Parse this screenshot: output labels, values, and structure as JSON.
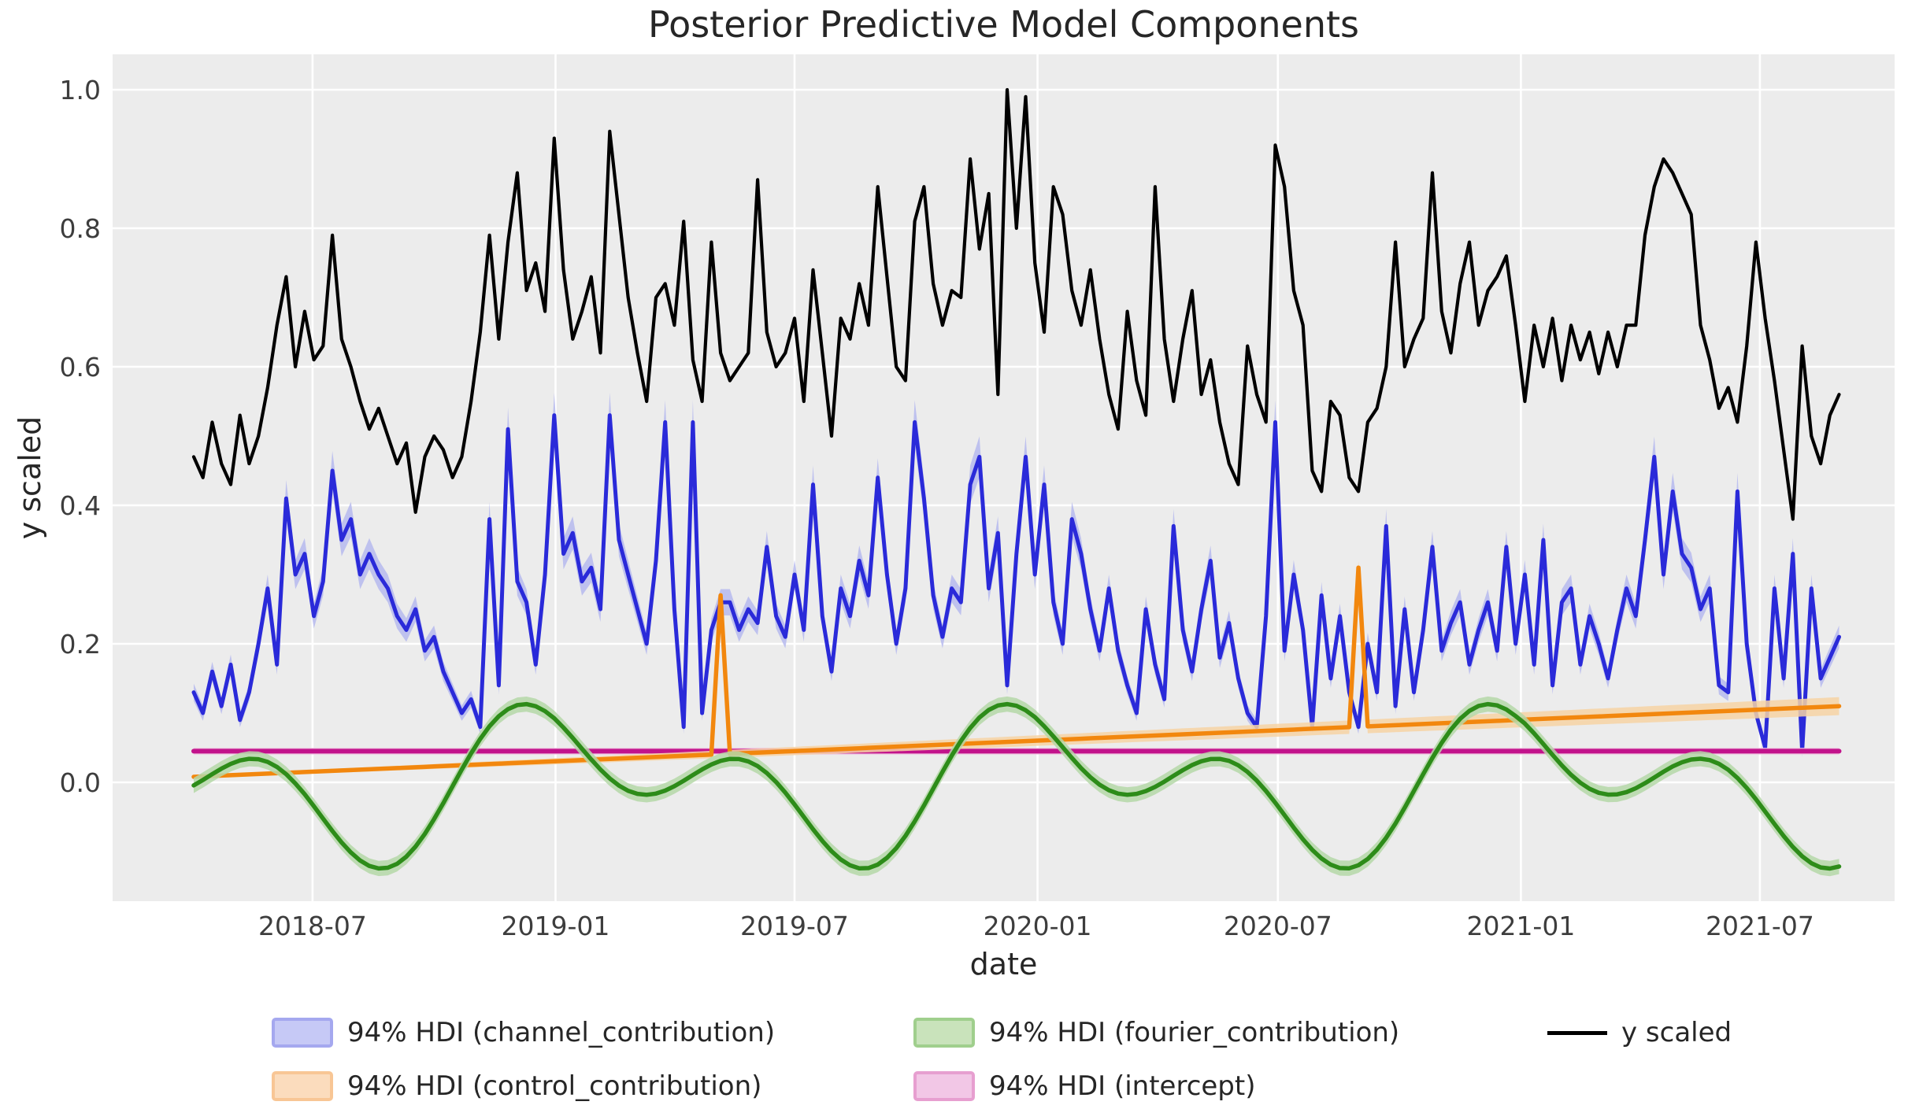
{
  "chart_data": {
    "type": "line",
    "title": "Posterior Predictive Model Components",
    "xlabel": "date",
    "ylabel": "y scaled",
    "hdi_label_prefix": "94% HDI",
    "x_start_date": "2018-04-02",
    "x_freq_days": 7,
    "n_points": 179,
    "ylim": [
      -0.172,
      1.055
    ],
    "grid": true,
    "plot_background": "#ececec",
    "grid_color": "#ffffff",
    "tick_color": "#3d3d3d",
    "text_color": "#262626",
    "x_ticks": [
      {
        "label": "2018-07",
        "day": 90
      },
      {
        "label": "2019-01",
        "day": 274
      },
      {
        "label": "2019-07",
        "day": 455
      },
      {
        "label": "2020-01",
        "day": 639
      },
      {
        "label": "2020-07",
        "day": 821
      },
      {
        "label": "2021-01",
        "day": 1005
      },
      {
        "label": "2021-07",
        "day": 1186
      }
    ],
    "y_ticks": [
      {
        "label": "1.0",
        "value": 1.0
      },
      {
        "label": "0.8",
        "value": 0.8
      },
      {
        "label": "0.6",
        "value": 0.6
      },
      {
        "label": "0.4",
        "value": 0.4
      },
      {
        "label": "0.2",
        "value": 0.2
      },
      {
        "label": "0.0",
        "value": 0.0
      }
    ],
    "series": [
      {
        "id": "channel_contribution",
        "legend_label": "94% HDI (channel_contribution)",
        "kind": "line_hdi",
        "color": "#2a2ad9",
        "band_color": "#b6baee",
        "band_base": 0.006,
        "band_scale": 0.05,
        "values": [
          0.13,
          0.1,
          0.16,
          0.11,
          0.17,
          0.09,
          0.13,
          0.2,
          0.28,
          0.17,
          0.41,
          0.3,
          0.33,
          0.24,
          0.29,
          0.45,
          0.35,
          0.38,
          0.3,
          0.33,
          0.3,
          0.28,
          0.24,
          0.22,
          0.25,
          0.19,
          0.21,
          0.16,
          0.13,
          0.1,
          0.12,
          0.08,
          0.38,
          0.14,
          0.51,
          0.29,
          0.26,
          0.17,
          0.3,
          0.53,
          0.33,
          0.36,
          0.29,
          0.31,
          0.25,
          0.53,
          0.35,
          0.3,
          0.25,
          0.2,
          0.32,
          0.52,
          0.25,
          0.08,
          0.52,
          0.1,
          0.22,
          0.26,
          0.26,
          0.22,
          0.25,
          0.23,
          0.34,
          0.24,
          0.21,
          0.3,
          0.22,
          0.43,
          0.24,
          0.16,
          0.28,
          0.24,
          0.32,
          0.27,
          0.44,
          0.3,
          0.2,
          0.28,
          0.52,
          0.41,
          0.27,
          0.21,
          0.28,
          0.26,
          0.43,
          0.47,
          0.28,
          0.36,
          0.14,
          0.33,
          0.47,
          0.3,
          0.43,
          0.26,
          0.2,
          0.38,
          0.33,
          0.25,
          0.19,
          0.28,
          0.19,
          0.14,
          0.1,
          0.25,
          0.17,
          0.12,
          0.37,
          0.22,
          0.16,
          0.25,
          0.32,
          0.18,
          0.23,
          0.15,
          0.1,
          0.08,
          0.24,
          0.52,
          0.19,
          0.3,
          0.22,
          0.08,
          0.27,
          0.15,
          0.24,
          0.13,
          0.08,
          0.2,
          0.13,
          0.37,
          0.11,
          0.25,
          0.13,
          0.22,
          0.34,
          0.19,
          0.23,
          0.26,
          0.17,
          0.22,
          0.26,
          0.19,
          0.34,
          0.2,
          0.3,
          0.17,
          0.35,
          0.14,
          0.26,
          0.28,
          0.17,
          0.24,
          0.2,
          0.15,
          0.22,
          0.28,
          0.24,
          0.35,
          0.47,
          0.3,
          0.42,
          0.33,
          0.31,
          0.25,
          0.28,
          0.14,
          0.13,
          0.42,
          0.2,
          0.1,
          0.05,
          0.28,
          0.15,
          0.33,
          0.045,
          0.28,
          0.15,
          0.18,
          0.21
        ]
      },
      {
        "id": "intercept",
        "legend_label": "94% HDI (intercept)",
        "kind": "constant",
        "color": "#c2138b",
        "band_color": "#eec2e0",
        "mean": 0.045,
        "band_halfwidth": 0.005
      },
      {
        "id": "control_contribution",
        "legend_label": "94% HDI (control_contribution)",
        "kind": "baseline_spikes",
        "color": "#f2870e",
        "band_color": "#f7d3a5",
        "baseline_start": 0.008,
        "baseline_end": 0.11,
        "band_start": 0.002,
        "band_end": 0.013,
        "spikes": [
          {
            "week": 57,
            "date": "2019-05-06",
            "value": 0.27
          },
          {
            "week": 126,
            "date": "2020-08-31",
            "value": 0.31
          }
        ]
      },
      {
        "id": "fourier_contribution",
        "legend_label": "94% HDI (fourier_contribution)",
        "kind": "fourier",
        "color": "#2d8c19",
        "band_color": "#b5d8a8",
        "band_halfwidth": 0.011,
        "harmonics": {
          "period_days": 365.25,
          "cos1": 0.0628,
          "sin1": 0.0241,
          "cos2": 0.0293,
          "sin2": -0.0615
        },
        "annual_peak": {
          "around": "12-20",
          "value": 0.107
        },
        "annual_trough": {
          "around": "08-01",
          "value": -0.105
        }
      },
      {
        "id": "y_scaled",
        "legend_label": "y scaled",
        "kind": "line",
        "color": "#000000",
        "values": [
          0.47,
          0.44,
          0.52,
          0.46,
          0.43,
          0.53,
          0.46,
          0.5,
          0.57,
          0.66,
          0.73,
          0.6,
          0.68,
          0.61,
          0.63,
          0.79,
          0.64,
          0.6,
          0.55,
          0.51,
          0.54,
          0.5,
          0.46,
          0.49,
          0.39,
          0.47,
          0.5,
          0.48,
          0.44,
          0.47,
          0.55,
          0.65,
          0.79,
          0.64,
          0.78,
          0.88,
          0.71,
          0.75,
          0.68,
          0.93,
          0.74,
          0.64,
          0.68,
          0.73,
          0.62,
          0.94,
          0.82,
          0.7,
          0.62,
          0.55,
          0.7,
          0.72,
          0.66,
          0.81,
          0.61,
          0.55,
          0.78,
          0.62,
          0.58,
          0.6,
          0.62,
          0.87,
          0.65,
          0.6,
          0.62,
          0.67,
          0.55,
          0.74,
          0.62,
          0.5,
          0.67,
          0.64,
          0.72,
          0.66,
          0.86,
          0.73,
          0.6,
          0.58,
          0.81,
          0.86,
          0.72,
          0.66,
          0.71,
          0.7,
          0.9,
          0.77,
          0.85,
          0.56,
          1.0,
          0.8,
          0.99,
          0.75,
          0.65,
          0.86,
          0.82,
          0.71,
          0.66,
          0.74,
          0.64,
          0.56,
          0.51,
          0.68,
          0.58,
          0.53,
          0.86,
          0.64,
          0.55,
          0.64,
          0.71,
          0.56,
          0.61,
          0.52,
          0.46,
          0.43,
          0.63,
          0.56,
          0.52,
          0.92,
          0.86,
          0.71,
          0.66,
          0.45,
          0.42,
          0.55,
          0.53,
          0.44,
          0.42,
          0.52,
          0.54,
          0.6,
          0.78,
          0.6,
          0.64,
          0.67,
          0.88,
          0.68,
          0.62,
          0.72,
          0.78,
          0.66,
          0.71,
          0.73,
          0.76,
          0.66,
          0.55,
          0.66,
          0.6,
          0.67,
          0.58,
          0.66,
          0.61,
          0.65,
          0.59,
          0.65,
          0.6,
          0.66,
          0.66,
          0.79,
          0.86,
          0.9,
          0.88,
          0.85,
          0.82,
          0.66,
          0.61,
          0.54,
          0.57,
          0.52,
          0.63,
          0.78,
          0.67,
          0.58,
          0.48,
          0.38,
          0.63,
          0.5,
          0.46,
          0.53,
          0.56
        ]
      }
    ]
  },
  "legend": {
    "rows": [
      [
        {
          "label": "94% HDI (channel_contribution)",
          "swatch": "patch",
          "fill": "#c6c9f6",
          "border": "#a5a8ef"
        },
        {
          "label": "94% HDI (fourier_contribution)",
          "swatch": "patch",
          "fill": "#c9e3bb",
          "border": "#a0cf8d"
        },
        {
          "label": "y scaled",
          "swatch": "line",
          "color": "#000000"
        }
      ],
      [
        {
          "label": "94% HDI (control_contribution)",
          "swatch": "patch",
          "fill": "#fbdcbd",
          "border": "#f8c695"
        },
        {
          "label": "94% HDI (intercept)",
          "swatch": "patch",
          "fill": "#f2c7e6",
          "border": "#e79fd0"
        }
      ]
    ]
  }
}
